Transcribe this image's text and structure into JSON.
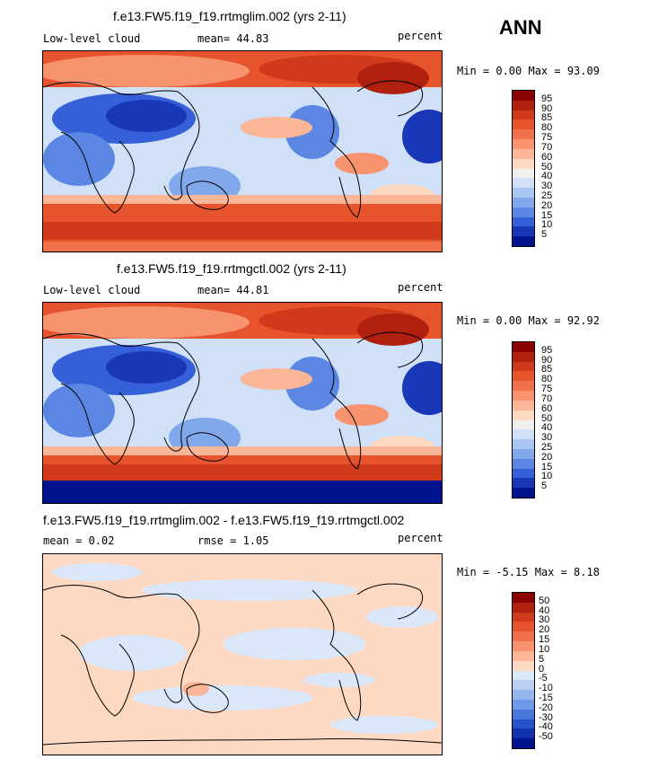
{
  "season": "ANN",
  "panels": [
    {
      "title": "f.e13.FW5.f19_f19.rrtmglim.002 (yrs 2-11)",
      "left_label": "Low-level cloud",
      "stat_text": "mean=  44.83",
      "units": "percent",
      "range_text": "Min =   0.00 Max =  93.09",
      "kind": "abs"
    },
    {
      "title": "f.e13.FW5.f19_f19.rrtmgctl.002 (yrs 2-11)",
      "left_label": "Low-level cloud",
      "stat_text": "mean=  44.81",
      "units": "percent",
      "range_text": "Min =   0.00 Max =  92.92",
      "kind": "abs"
    },
    {
      "title": "f.e13.FW5.f19_f19.rrtmglim.002 - f.e13.FW5.f19_f19.rrtmgctl.002",
      "left_label": "mean =   0.02",
      "stat_text": "rmse =   1.05",
      "units": "percent",
      "range_text": "Min =  -5.15 Max =   8.18",
      "kind": "diff"
    }
  ],
  "colorbar_abs": {
    "labels": [
      "95",
      "90",
      "85",
      "80",
      "75",
      "70",
      "60",
      "50",
      "40",
      "30",
      "25",
      "20",
      "15",
      "10",
      "5"
    ],
    "colors": [
      "#8b0000",
      "#b0200f",
      "#d03a1a",
      "#e6532d",
      "#f0704a",
      "#f7936e",
      "#fbb597",
      "#fdd8c3",
      "#f0f0f0",
      "#cfe0f7",
      "#a9c7f2",
      "#82a8ec",
      "#5b86e3",
      "#3560d8",
      "#1838b8",
      "#001490"
    ]
  },
  "colorbar_diff": {
    "labels": [
      "50",
      "40",
      "30",
      "20",
      "15",
      "10",
      "5",
      "0",
      "-5",
      "-10",
      "-15",
      "-20",
      "-30",
      "-40",
      "-50"
    ],
    "colors": [
      "#8b0000",
      "#b0200f",
      "#d03a1a",
      "#e6532d",
      "#f0704a",
      "#f7936e",
      "#fbb597",
      "#fdd8c3",
      "#dbe8fa",
      "#b8d0f4",
      "#94b6ee",
      "#6f98e6",
      "#4a76dc",
      "#2652cb",
      "#1032aa",
      "#001490"
    ]
  },
  "chart_data": [
    {
      "type": "heatmap",
      "title": "f.e13.FW5.f19_f19.rrtmglim.002 (yrs 2-11)",
      "variable": "Low-level cloud",
      "units": "percent",
      "mean": 44.83,
      "min": 0.0,
      "max": 93.09,
      "levels": [
        5,
        10,
        15,
        20,
        25,
        30,
        40,
        50,
        60,
        70,
        75,
        80,
        85,
        90,
        95
      ]
    },
    {
      "type": "heatmap",
      "title": "f.e13.FW5.f19_f19.rrtmgctl.002 (yrs 2-11)",
      "variable": "Low-level cloud",
      "units": "percent",
      "mean": 44.81,
      "min": 0.0,
      "max": 92.92,
      "levels": [
        5,
        10,
        15,
        20,
        25,
        30,
        40,
        50,
        60,
        70,
        75,
        80,
        85,
        90,
        95
      ]
    },
    {
      "type": "heatmap",
      "title": "f.e13.FW5.f19_f19.rrtmglim.002 - f.e13.FW5.f19_f19.rrtmgctl.002",
      "units": "percent",
      "mean": 0.02,
      "rmse": 1.05,
      "min": -5.15,
      "max": 8.18,
      "levels": [
        -50,
        -40,
        -30,
        -20,
        -15,
        -10,
        -5,
        0,
        5,
        10,
        15,
        20,
        30,
        40,
        50
      ]
    }
  ]
}
